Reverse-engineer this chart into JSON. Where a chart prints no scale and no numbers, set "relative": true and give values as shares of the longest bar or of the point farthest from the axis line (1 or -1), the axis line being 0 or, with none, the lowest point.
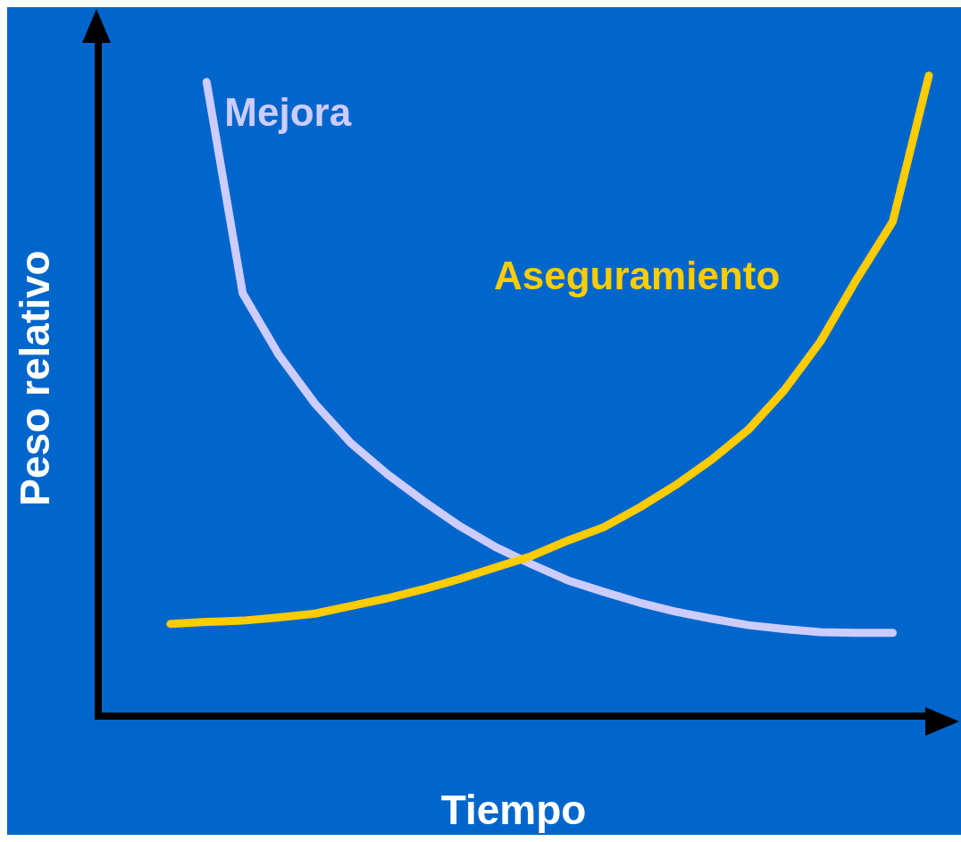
{
  "chart_data": {
    "type": "line",
    "relative": true,
    "xlabel": "Tiempo",
    "ylabel": "Peso relativo",
    "grid": false,
    "legend": false,
    "marker": "none",
    "line_style": "solid",
    "categories": [
      null,
      null,
      null,
      null,
      null,
      null,
      null,
      null,
      null,
      null,
      null,
      null,
      null,
      null,
      null,
      null,
      null,
      null,
      null,
      null,
      null,
      null,
      null,
      null
    ],
    "series": [
      {
        "name": "Mejora",
        "color": "#ccccff",
        "values": [
          null,
          null,
          null,
          0.99,
          0.66,
          0.564,
          0.488,
          0.426,
          0.378,
          0.336,
          0.297,
          0.264,
          0.237,
          0.212,
          0.194,
          0.177,
          0.163,
          0.152,
          0.142,
          0.136,
          0.131,
          0.13,
          0.13,
          null
        ]
      },
      {
        "name": "Aseguramiento",
        "color": "#ffcc00",
        "values": [
          null,
          null,
          0.144,
          0.147,
          0.149,
          0.154,
          0.16,
          0.172,
          0.184,
          0.198,
          0.214,
          0.232,
          0.25,
          0.274,
          0.295,
          0.326,
          0.361,
          0.401,
          0.447,
          0.509,
          0.585,
          0.682,
          0.772,
          1.0
        ]
      }
    ]
  }
}
